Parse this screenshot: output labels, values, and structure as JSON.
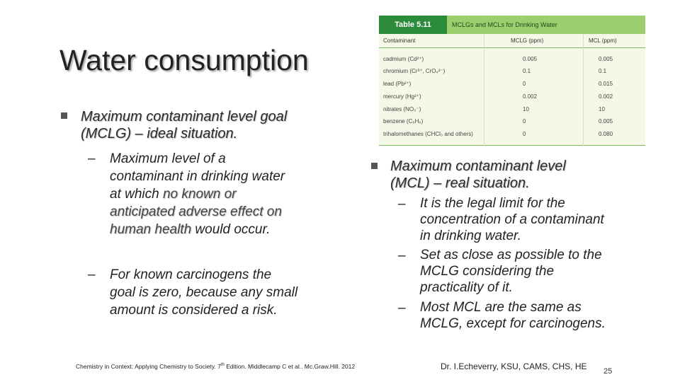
{
  "slide": {
    "title": "Water consumption",
    "left": {
      "bullet_line1": "Maximum contaminant level goal",
      "bullet_line2": "(MCLG) – ideal situation.",
      "sub1_lines": [
        "Maximum level of a",
        "contaminant in drinking water",
        "at which ",
        "no known or",
        "anticipated adverse effect on",
        "human health",
        " would occur."
      ],
      "sub2_lines": [
        "For known carcinogens the",
        "goal is zero, because any small",
        "amount is considered a risk."
      ],
      "dash": "–"
    },
    "right": {
      "bullet_line1": "Maximum contaminant level",
      "bullet_line2": "(MCL) – real situation.",
      "items": [
        [
          "It is the legal limit for the",
          "concentration of a contaminant",
          "in drinking water."
        ],
        [
          "Set as close as possible to the",
          "MCLG considering the",
          "practicality of it."
        ],
        [
          "Most MCL are the same as",
          "MCLG, except for carcinogens."
        ]
      ],
      "dash": "–"
    },
    "table": {
      "number": "Table 5.11",
      "caption": "MCLGs and MCLs for Drinking Water",
      "headers": [
        "Contaminant",
        "MCLG (ppm)",
        "MCL (ppm)"
      ],
      "rows": [
        [
          "cadmium (Cd²⁺)",
          "0.005",
          "0.005"
        ],
        [
          "chromium (Cr³⁺, CrO₄²⁻)",
          "0.1",
          "0.1"
        ],
        [
          "lead (Pb²⁺)",
          "0",
          "0.015"
        ],
        [
          "mercury (Hg²⁺)",
          "0.002",
          "0.002"
        ],
        [
          "nitrates (NO₃⁻)",
          "10",
          "10"
        ],
        [
          "benzene (C₆H₆)",
          "0",
          "0.005"
        ],
        [
          "trihalomethanes (CHCl₃ and others)",
          "0",
          "0.080"
        ]
      ]
    },
    "footer_citation_pre": "Chemistry in Context: Applying Chemistry to Society. 7",
    "footer_citation_sup": "th",
    "footer_citation_post": " Edition. Middlecamp C et al.. Mc.Graw.Hill. 2012",
    "footer_author": "Dr. I.Echeverry, KSU, CAMS, CHS, HE",
    "page_number": "25"
  }
}
